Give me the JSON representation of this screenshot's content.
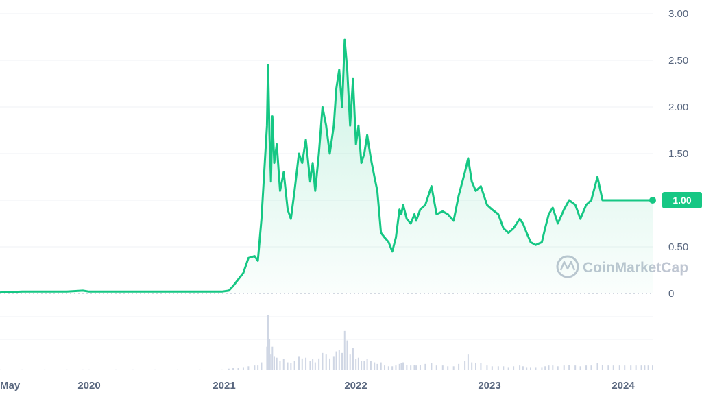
{
  "watermark": {
    "text": "CoinMarketCap",
    "icon": "coinmarketcap-logo-icon"
  },
  "colors": {
    "line": "#16c784",
    "fill_top": "#16c784",
    "grid": "#eff2f5",
    "volume": "#cfd6e4",
    "tick": "#58667e",
    "tag_bg": "#16c784",
    "tag_text": "#ffffff"
  },
  "chart_data": {
    "type": "area",
    "title": "",
    "xlabel": "",
    "ylabel": "",
    "y_ticks": [
      "3.00",
      "2.50",
      "2.00",
      "1.50",
      "1.00",
      "0.50",
      "0"
    ],
    "ylim": [
      0,
      3.0
    ],
    "x_ticks": [
      "May",
      "2020",
      "2021",
      "2022",
      "2023",
      "2024"
    ],
    "x": [
      "2019-05-01",
      "2019-07-01",
      "2019-09-01",
      "2019-11-01",
      "2019-12-15",
      "2020-01-01",
      "2020-03-15",
      "2020-05-01",
      "2020-07-01",
      "2020-09-01",
      "2020-11-01",
      "2021-01-01",
      "2021-01-20",
      "2021-02-01",
      "2021-02-15",
      "2021-03-01",
      "2021-03-15",
      "2021-04-01",
      "2021-04-10",
      "2021-04-20",
      "2021-05-05",
      "2021-05-08",
      "2021-05-12",
      "2021-05-16",
      "2021-05-20",
      "2021-05-25",
      "2021-06-01",
      "2021-06-10",
      "2021-06-20",
      "2021-07-01",
      "2021-07-10",
      "2021-07-20",
      "2021-08-01",
      "2021-08-10",
      "2021-08-20",
      "2021-09-01",
      "2021-09-08",
      "2021-09-15",
      "2021-09-25",
      "2021-10-05",
      "2021-10-15",
      "2021-10-25",
      "2021-11-05",
      "2021-11-12",
      "2021-11-20",
      "2021-11-28",
      "2021-12-05",
      "2021-12-12",
      "2021-12-20",
      "2021-12-28",
      "2022-01-05",
      "2022-01-12",
      "2022-01-20",
      "2022-01-28",
      "2022-02-05",
      "2022-02-15",
      "2022-02-25",
      "2022-03-05",
      "2022-03-15",
      "2022-03-25",
      "2022-04-05",
      "2022-04-15",
      "2022-04-25",
      "2022-05-05",
      "2022-05-10",
      "2022-05-15",
      "2022-05-25",
      "2022-06-05",
      "2022-06-15",
      "2022-06-20",
      "2022-07-01",
      "2022-07-15",
      "2022-08-01",
      "2022-08-15",
      "2022-09-01",
      "2022-09-15",
      "2022-10-01",
      "2022-10-15",
      "2022-11-01",
      "2022-11-10",
      "2022-11-20",
      "2022-12-01",
      "2022-12-15",
      "2023-01-01",
      "2023-01-15",
      "2023-02-01",
      "2023-02-15",
      "2023-03-01",
      "2023-03-15",
      "2023-04-01",
      "2023-04-10",
      "2023-04-20",
      "2023-05-01",
      "2023-05-15",
      "2023-06-01",
      "2023-06-10",
      "2023-06-20",
      "2023-07-01",
      "2023-07-15",
      "2023-08-01",
      "2023-08-15",
      "2023-09-01",
      "2023-09-15",
      "2023-10-01",
      "2023-10-15",
      "2023-11-01",
      "2023-11-15",
      "2023-12-01",
      "2023-12-15",
      "2024-01-01",
      "2024-01-15",
      "2024-02-01",
      "2024-02-15",
      "2024-03-01",
      "2024-03-10",
      "2024-03-20",
      "2024-04-01"
    ],
    "series": [
      {
        "values": [
          0.01,
          0.02,
          0.02,
          0.02,
          0.03,
          0.02,
          0.02,
          0.02,
          0.02,
          0.02,
          0.02,
          0.02,
          0.03,
          0.08,
          0.15,
          0.22,
          0.38,
          0.4,
          0.35,
          0.8,
          1.8,
          2.45,
          1.7,
          1.2,
          1.9,
          1.4,
          1.6,
          1.1,
          1.3,
          0.9,
          0.8,
          1.1,
          1.5,
          1.4,
          1.65,
          1.2,
          1.4,
          1.1,
          1.5,
          2.0,
          1.8,
          1.5,
          1.8,
          2.2,
          2.4,
          2.0,
          2.72,
          2.4,
          1.8,
          2.3,
          1.6,
          1.8,
          1.4,
          1.5,
          1.7,
          1.45,
          1.25,
          1.1,
          0.65,
          0.6,
          0.55,
          0.45,
          0.6,
          0.9,
          0.85,
          0.95,
          0.8,
          0.75,
          0.85,
          0.78,
          0.9,
          0.95,
          1.15,
          0.85,
          0.88,
          0.85,
          0.78,
          1.05,
          1.3,
          1.45,
          1.2,
          1.1,
          1.15,
          0.95,
          0.9,
          0.85,
          0.7,
          0.65,
          0.7,
          0.8,
          0.75,
          0.65,
          0.55,
          0.52,
          0.55,
          0.7,
          0.85,
          0.92,
          0.75,
          0.9,
          1.0,
          0.95,
          0.8,
          0.95,
          1.0,
          1.25,
          1.0,
          1.0,
          1.0,
          1.0,
          1.0,
          1.0,
          1.0,
          1.0,
          1.0,
          1.0,
          1.0
        ]
      }
    ],
    "current_price": "1.00",
    "volume": [
      1,
      1,
      1,
      1,
      1,
      1,
      1,
      1,
      1,
      1,
      1,
      1,
      2,
      3,
      3,
      4,
      5,
      6,
      6,
      10,
      30,
      70,
      40,
      20,
      30,
      18,
      16,
      12,
      14,
      10,
      9,
      12,
      18,
      15,
      16,
      12,
      14,
      10,
      15,
      22,
      20,
      15,
      18,
      24,
      26,
      22,
      50,
      38,
      20,
      28,
      14,
      16,
      12,
      12,
      14,
      12,
      10,
      8,
      10,
      6,
      5,
      5,
      6,
      8,
      9,
      10,
      7,
      6,
      7,
      6,
      7,
      8,
      9,
      6,
      6,
      5,
      5,
      8,
      12,
      20,
      10,
      9,
      9,
      6,
      5,
      5,
      5,
      4,
      5,
      6,
      5,
      4,
      4,
      4,
      4,
      5,
      6,
      6,
      5,
      6,
      7,
      6,
      5,
      6,
      6,
      9,
      7,
      6,
      6,
      6,
      6,
      6,
      6,
      6,
      6,
      6,
      6
    ]
  }
}
